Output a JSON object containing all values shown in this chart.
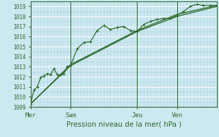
{
  "bg_color": "#cce8f0",
  "grid_color_major": "#aad4e0",
  "grid_color_white": "#ffffff",
  "line_color": "#2d6a2d",
  "axis_label_color": "#2d6a2d",
  "xlabel": "Pression niveau de la mer( hPa )",
  "ylim": [
    1009.0,
    1019.5
  ],
  "yticks": [
    1009,
    1010,
    1011,
    1012,
    1013,
    1014,
    1015,
    1016,
    1017,
    1018,
    1019
  ],
  "xtick_labels": [
    "Mer",
    "Sam",
    "Jeu",
    "Ven"
  ],
  "xtick_positions": [
    0,
    72,
    192,
    264
  ],
  "vline_positions": [
    0,
    72,
    192,
    264
  ],
  "total_hours": 336,
  "line1_x": [
    0,
    6,
    12,
    18,
    24,
    30,
    36,
    42,
    48,
    54,
    60,
    66,
    72,
    84,
    96,
    108,
    120,
    132,
    144,
    156,
    168,
    180,
    192,
    204,
    216,
    228,
    240,
    252,
    264,
    276,
    288,
    300,
    312,
    324,
    336
  ],
  "line1_y": [
    1009.3,
    1010.7,
    1011.0,
    1011.9,
    1012.1,
    1012.3,
    1012.2,
    1012.8,
    1012.2,
    1012.2,
    1012.3,
    1013.0,
    1013.1,
    1014.8,
    1015.4,
    1015.5,
    1016.6,
    1017.1,
    1016.7,
    1016.9,
    1017.0,
    1016.6,
    1016.5,
    1017.2,
    1017.5,
    1017.7,
    1017.8,
    1017.8,
    1018.1,
    1018.5,
    1019.0,
    1019.2,
    1019.1,
    1019.1,
    1019.1
  ],
  "line2_x": [
    0,
    72,
    192,
    264,
    336
  ],
  "line2_y": [
    1009.3,
    1013.2,
    1016.6,
    1018.2,
    1019.1
  ],
  "line3_x": [
    0,
    72,
    192,
    264,
    336
  ],
  "line3_y": [
    1009.3,
    1013.1,
    1016.5,
    1018.0,
    1019.0
  ]
}
